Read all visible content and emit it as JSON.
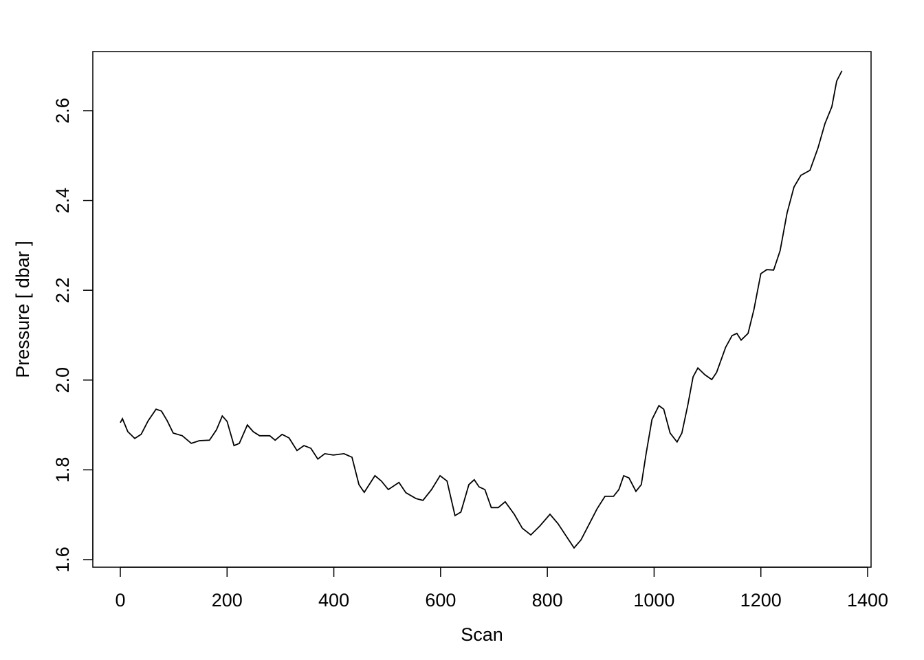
{
  "chart_data": {
    "type": "line",
    "title": "",
    "xlabel": "Scan",
    "ylabel": "Pressure [ dbar ]",
    "xlim": [
      -53,
      1405
    ],
    "ylim": [
      1.58,
      2.73
    ],
    "xticks": [
      0,
      200,
      400,
      600,
      800,
      1000,
      1200,
      1400
    ],
    "xtick_labels": [
      "0",
      "200",
      "400",
      "600",
      "800",
      "1000",
      "1200",
      "1400"
    ],
    "yticks": [
      1.6,
      1.8,
      2.0,
      2.2,
      2.4,
      2.6
    ],
    "ytick_labels": [
      "1.6",
      "1.8",
      "2.0",
      "2.2",
      "2.4",
      "2.6"
    ],
    "grid": false,
    "line_color": "#000000",
    "x": [
      0,
      4,
      14,
      27,
      39,
      52,
      67,
      77,
      88,
      99,
      116,
      133,
      148,
      167,
      180,
      191,
      200,
      213,
      223,
      238,
      249,
      261,
      280,
      290,
      303,
      316,
      331,
      344,
      357,
      370,
      383,
      399,
      419,
      434,
      447,
      457,
      477,
      489,
      502,
      522,
      535,
      554,
      567,
      583,
      599,
      612,
      627,
      638,
      653,
      663,
      672,
      683,
      695,
      708,
      721,
      738,
      753,
      769,
      786,
      805,
      820,
      834,
      850,
      863,
      880,
      893,
      908,
      924,
      934,
      943,
      953,
      966,
      976,
      985,
      996,
      1009,
      1018,
      1030,
      1043,
      1052,
      1063,
      1073,
      1082,
      1095,
      1108,
      1117,
      1134,
      1146,
      1155,
      1163,
      1176,
      1187,
      1200,
      1211,
      1224,
      1236,
      1249,
      1262,
      1275,
      1292,
      1307,
      1320,
      1333,
      1342,
      1352
    ],
    "y": [
      1.905,
      1.914,
      1.885,
      1.87,
      1.879,
      1.909,
      1.935,
      1.931,
      1.909,
      1.882,
      1.876,
      1.859,
      1.865,
      1.866,
      1.889,
      1.92,
      1.908,
      1.854,
      1.859,
      1.9,
      1.885,
      1.876,
      1.876,
      1.866,
      1.879,
      1.871,
      1.843,
      1.854,
      1.848,
      1.824,
      1.836,
      1.833,
      1.836,
      1.828,
      1.767,
      1.75,
      1.787,
      1.775,
      1.756,
      1.772,
      1.749,
      1.736,
      1.732,
      1.756,
      1.787,
      1.775,
      1.698,
      1.706,
      1.767,
      1.778,
      1.762,
      1.756,
      1.716,
      1.716,
      1.729,
      1.701,
      1.67,
      1.655,
      1.675,
      1.701,
      1.68,
      1.655,
      1.626,
      1.644,
      1.683,
      1.713,
      1.741,
      1.741,
      1.756,
      1.787,
      1.782,
      1.752,
      1.767,
      1.836,
      1.912,
      1.943,
      1.935,
      1.882,
      1.862,
      1.882,
      1.943,
      2.007,
      2.027,
      2.012,
      2.001,
      2.017,
      2.073,
      2.099,
      2.104,
      2.089,
      2.104,
      2.157,
      2.237,
      2.246,
      2.245,
      2.288,
      2.372,
      2.43,
      2.456,
      2.467,
      2.517,
      2.571,
      2.609,
      2.666,
      2.689
    ]
  }
}
